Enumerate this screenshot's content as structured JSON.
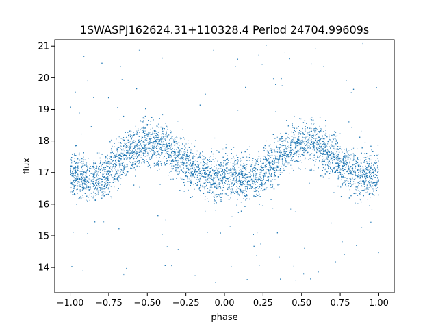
{
  "chart_data": {
    "type": "scatter",
    "title": "1SWASPJ162624.31+110328.4 Period 24704.99609s",
    "xlabel": "phase",
    "ylabel": "flux",
    "xlim": [
      -1.1,
      1.1
    ],
    "ylim": [
      13.2,
      21.2
    ],
    "xticks": [
      -1.0,
      -0.75,
      -0.5,
      -0.25,
      0.0,
      0.25,
      0.5,
      0.75,
      1.0
    ],
    "xtick_labels": [
      "−1.00",
      "−0.75",
      "−0.50",
      "−0.25",
      "0.00",
      "0.25",
      "0.50",
      "0.75",
      "1.00"
    ],
    "yticks": [
      14,
      15,
      16,
      17,
      18,
      19,
      20,
      21
    ],
    "ytick_labels": [
      "14",
      "15",
      "16",
      "17",
      "18",
      "19",
      "20",
      "21"
    ],
    "grid": false,
    "marker_color": "#1f77b4",
    "series": [
      {
        "description_points": "dense phase-folded light curve; mean flux curve sampled below",
        "x": [
          -1.0,
          -0.9,
          -0.8,
          -0.7,
          -0.6,
          -0.5,
          -0.4,
          -0.3,
          -0.2,
          -0.1,
          0.0,
          0.1,
          0.2,
          0.3,
          0.4,
          0.5,
          0.6,
          0.7,
          0.8,
          0.9,
          1.0
        ],
        "y": [
          16.9,
          16.8,
          16.8,
          17.3,
          17.7,
          17.9,
          17.9,
          17.5,
          17.1,
          16.9,
          16.8,
          16.8,
          16.8,
          17.3,
          17.7,
          17.9,
          17.9,
          17.5,
          17.1,
          16.9,
          16.9
        ],
        "scatter_width": 0.55,
        "outlier_range": [
          13.5,
          21.1
        ]
      }
    ]
  }
}
